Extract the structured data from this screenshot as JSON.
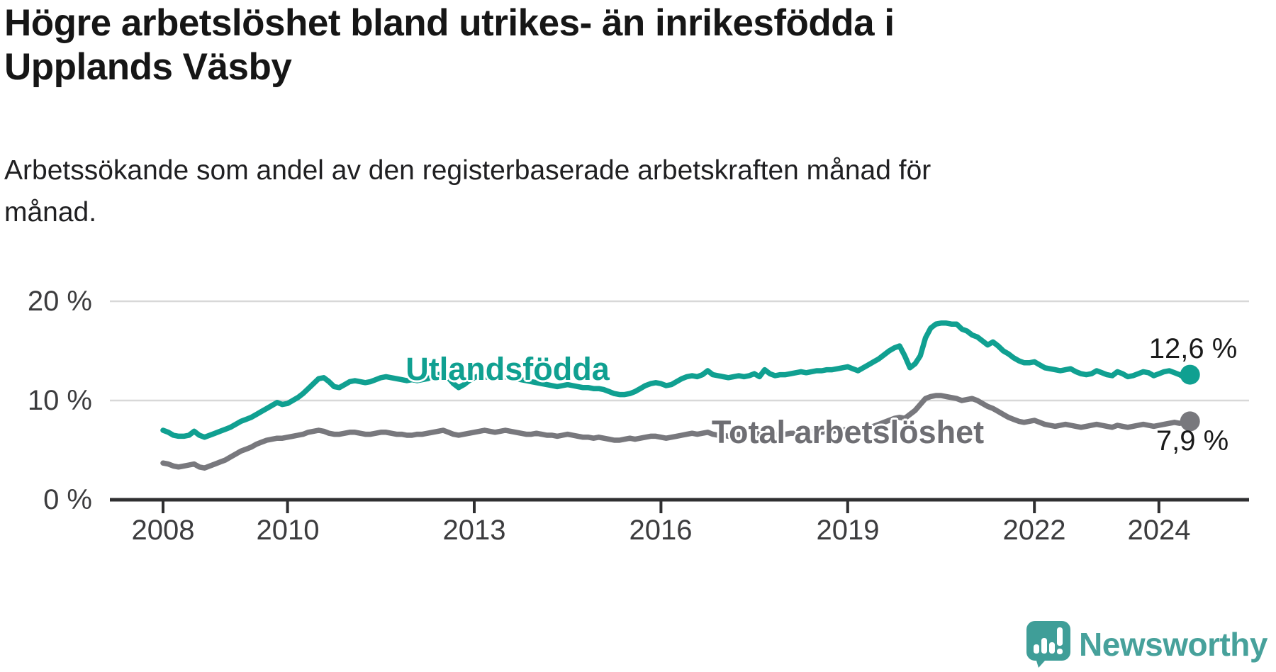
{
  "header": {
    "title_lines": [
      "Högre arbetslöshet bland utrikes- än inrikesfödda i",
      "Upplands Väsby"
    ],
    "subtitle_lines": [
      "Arbetssökande som andel av den registerbaserade arbetskraften månad för",
      "månad."
    ]
  },
  "branding": {
    "name": "Newsworthy",
    "logo_color": "#3f9e98",
    "text_color": "#47a19b"
  },
  "colors": {
    "foreign_born_line": "#10a091",
    "total_line": "#78787d",
    "total_label": "#6e6e73",
    "gridline": "#d8d8d8",
    "axis": "#2f2f31",
    "tick_text": "#3c3c3e"
  },
  "chart_data": {
    "type": "line",
    "title": "Högre arbetslöshet bland utrikes- än inrikesfödda i Upplands Väsby",
    "subtitle": "Arbetssökande som andel av den registerbaserade arbetskraften månad för månad.",
    "unit": "%",
    "frequency": "monthly",
    "x_start_year": 2008,
    "x_start_month": 1,
    "x_end_year": 2024,
    "x_end_month": 7,
    "x_ticks": [
      "2008",
      "2010",
      "2013",
      "2016",
      "2019",
      "2022",
      "2024"
    ],
    "x_tick_years": [
      2008,
      2010,
      2013,
      2016,
      2019,
      2022,
      2024
    ],
    "y_ticks": [
      0,
      10,
      20
    ],
    "y_tick_labels": [
      "20 %",
      "10 %",
      "0 %"
    ],
    "ylim": [
      0,
      22
    ],
    "grid": "horizontal",
    "legend_position": "inline-labels",
    "series": [
      {
        "name": "Utlandsfödda",
        "color": "#10a091",
        "end_value": 12.6,
        "end_label": "12,6 %",
        "values": [
          7.0,
          6.8,
          6.5,
          6.4,
          6.4,
          6.5,
          6.9,
          6.5,
          6.3,
          6.5,
          6.7,
          6.9,
          7.1,
          7.3,
          7.6,
          7.9,
          8.1,
          8.3,
          8.6,
          8.9,
          9.2,
          9.5,
          9.8,
          9.6,
          9.7,
          10.0,
          10.3,
          10.7,
          11.2,
          11.7,
          12.2,
          12.3,
          11.9,
          11.4,
          11.3,
          11.6,
          11.9,
          12.0,
          11.9,
          11.8,
          11.9,
          12.1,
          12.3,
          12.4,
          12.3,
          12.2,
          12.1,
          12.0,
          12.1,
          12.0,
          12.1,
          12.2,
          12.4,
          12.6,
          12.7,
          12.3,
          11.7,
          11.3,
          11.6,
          12.0,
          12.3,
          12.5,
          12.4,
          12.3,
          12.2,
          12.3,
          12.4,
          12.3,
          12.2,
          12.1,
          12.0,
          11.9,
          11.8,
          11.7,
          11.6,
          11.5,
          11.4,
          11.5,
          11.6,
          11.5,
          11.4,
          11.3,
          11.3,
          11.2,
          11.2,
          11.1,
          10.9,
          10.7,
          10.6,
          10.6,
          10.7,
          10.9,
          11.2,
          11.5,
          11.7,
          11.8,
          11.7,
          11.5,
          11.6,
          11.9,
          12.2,
          12.4,
          12.5,
          12.4,
          12.6,
          13.0,
          12.6,
          12.5,
          12.4,
          12.3,
          12.4,
          12.5,
          12.4,
          12.5,
          12.7,
          12.4,
          13.1,
          12.7,
          12.5,
          12.6,
          12.6,
          12.7,
          12.8,
          12.9,
          12.8,
          12.9,
          13.0,
          13.0,
          13.1,
          13.1,
          13.2,
          13.3,
          13.4,
          13.2,
          13.0,
          13.3,
          13.6,
          13.9,
          14.2,
          14.6,
          15.0,
          15.3,
          15.5,
          14.5,
          13.3,
          13.7,
          14.5,
          16.3,
          17.3,
          17.7,
          17.8,
          17.8,
          17.7,
          17.7,
          17.2,
          17.0,
          16.6,
          16.4,
          16.0,
          15.6,
          15.9,
          15.5,
          15.0,
          14.7,
          14.3,
          14.0,
          13.8,
          13.8,
          13.9,
          13.6,
          13.3,
          13.2,
          13.1,
          13.0,
          13.1,
          13.2,
          12.9,
          12.7,
          12.6,
          12.7,
          13.0,
          12.8,
          12.6,
          12.5,
          12.9,
          12.7,
          12.4,
          12.5,
          12.7,
          12.9,
          12.8,
          12.5,
          12.7,
          12.9,
          13.0,
          12.8,
          12.6,
          12.3,
          12.6
        ]
      },
      {
        "name": "Total arbetslöshet",
        "color": "#78787d",
        "end_value": 7.9,
        "end_label": "7,9 %",
        "values": [
          3.7,
          3.6,
          3.4,
          3.3,
          3.4,
          3.5,
          3.6,
          3.3,
          3.2,
          3.4,
          3.6,
          3.8,
          4.0,
          4.3,
          4.6,
          4.9,
          5.1,
          5.3,
          5.6,
          5.8,
          6.0,
          6.1,
          6.2,
          6.2,
          6.3,
          6.4,
          6.5,
          6.6,
          6.8,
          6.9,
          7.0,
          6.9,
          6.7,
          6.6,
          6.6,
          6.7,
          6.8,
          6.8,
          6.7,
          6.6,
          6.6,
          6.7,
          6.8,
          6.8,
          6.7,
          6.6,
          6.6,
          6.5,
          6.5,
          6.6,
          6.6,
          6.7,
          6.8,
          6.9,
          7.0,
          6.8,
          6.6,
          6.5,
          6.6,
          6.7,
          6.8,
          6.9,
          7.0,
          6.9,
          6.8,
          6.9,
          7.0,
          6.9,
          6.8,
          6.7,
          6.6,
          6.6,
          6.7,
          6.6,
          6.5,
          6.5,
          6.4,
          6.5,
          6.6,
          6.5,
          6.4,
          6.3,
          6.3,
          6.2,
          6.3,
          6.2,
          6.1,
          6.0,
          6.0,
          6.1,
          6.2,
          6.1,
          6.2,
          6.3,
          6.4,
          6.4,
          6.3,
          6.2,
          6.3,
          6.4,
          6.5,
          6.6,
          6.7,
          6.6,
          6.7,
          6.8,
          6.6,
          6.5,
          6.5,
          6.4,
          6.5,
          6.6,
          6.5,
          6.6,
          6.8,
          6.6,
          6.9,
          6.7,
          6.6,
          6.6,
          6.6,
          6.7,
          6.7,
          6.8,
          6.7,
          6.8,
          6.9,
          6.8,
          6.9,
          6.9,
          7.0,
          7.0,
          7.1,
          7.0,
          6.9,
          7.0,
          7.2,
          7.4,
          7.6,
          7.8,
          8.0,
          8.2,
          8.3,
          8.2,
          8.6,
          9.0,
          9.6,
          10.2,
          10.4,
          10.5,
          10.5,
          10.4,
          10.3,
          10.2,
          10.0,
          10.1,
          10.2,
          10.0,
          9.7,
          9.4,
          9.2,
          8.9,
          8.6,
          8.3,
          8.1,
          7.9,
          7.8,
          7.9,
          8.0,
          7.8,
          7.6,
          7.5,
          7.4,
          7.5,
          7.6,
          7.5,
          7.4,
          7.3,
          7.4,
          7.5,
          7.6,
          7.5,
          7.4,
          7.3,
          7.5,
          7.4,
          7.3,
          7.4,
          7.5,
          7.6,
          7.5,
          7.4,
          7.5,
          7.6,
          7.7,
          7.8,
          7.7,
          7.8,
          7.9
        ]
      }
    ]
  }
}
